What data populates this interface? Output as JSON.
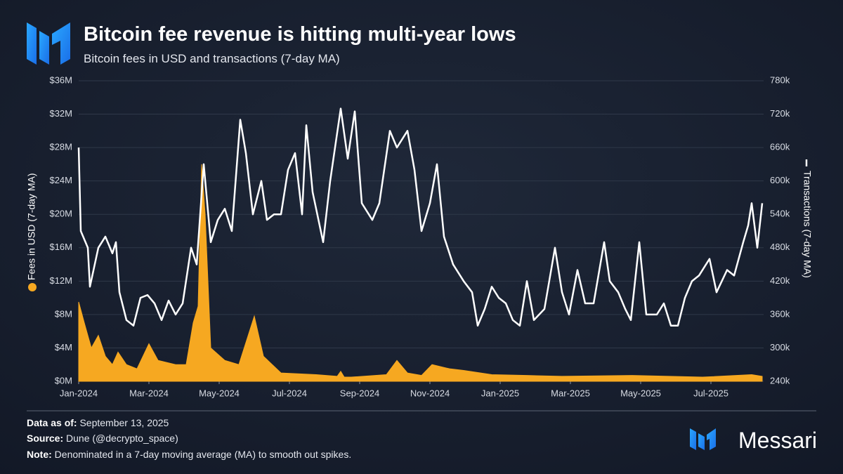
{
  "chart_data": {
    "type": "dual-axis-area-line",
    "title": "Bitcoin fee revenue is hitting multi-year lows",
    "subtitle": "Bitcoin fees in USD and transactions (7-day MA)",
    "xlim": [
      0,
      19.5
    ],
    "xticks": [
      {
        "value": 0,
        "label": "Jan-2024"
      },
      {
        "value": 2,
        "label": "Mar-2024"
      },
      {
        "value": 4,
        "label": "May-2024"
      },
      {
        "value": 6,
        "label": "Jul-2024"
      },
      {
        "value": 8,
        "label": "Sep-2024"
      },
      {
        "value": 10,
        "label": "Nov-2024"
      },
      {
        "value": 12,
        "label": "Jan-2025"
      },
      {
        "value": 14,
        "label": "Mar-2025"
      },
      {
        "value": 16,
        "label": "May-2025"
      },
      {
        "value": 18,
        "label": "Jul-2025"
      }
    ],
    "ylim": [
      0,
      36000000
    ],
    "yticks": [
      {
        "value": 0,
        "label": "$0M"
      },
      {
        "value": 4000000,
        "label": "$4M"
      },
      {
        "value": 8000000,
        "label": "$8M"
      },
      {
        "value": 12000000,
        "label": "$12M"
      },
      {
        "value": 16000000,
        "label": "$16M"
      },
      {
        "value": 20000000,
        "label": "$20M"
      },
      {
        "value": 24000000,
        "label": "$24M"
      },
      {
        "value": 28000000,
        "label": "$28M"
      },
      {
        "value": 32000000,
        "label": "$32M"
      },
      {
        "value": 36000000,
        "label": "$36M"
      }
    ],
    "y2lim": [
      240000,
      780000
    ],
    "y2ticks": [
      {
        "value": 240000,
        "label": "240k"
      },
      {
        "value": 300000,
        "label": "300k"
      },
      {
        "value": 360000,
        "label": "360k"
      },
      {
        "value": 420000,
        "label": "420k"
      },
      {
        "value": 480000,
        "label": "480k"
      },
      {
        "value": 540000,
        "label": "540k"
      },
      {
        "value": 600000,
        "label": "600k"
      },
      {
        "value": 660000,
        "label": "660k"
      },
      {
        "value": 720000,
        "label": "720k"
      },
      {
        "value": 780000,
        "label": "780k"
      }
    ],
    "grid": true,
    "series": [
      {
        "name": "Fees in USD (7-day MA)",
        "color": "#f6a821",
        "kind": "area",
        "axis": "y",
        "x": [
          0,
          0.16,
          0.36,
          0.56,
          0.76,
          0.96,
          1.12,
          1.36,
          1.66,
          2,
          2.26,
          2.76,
          3.06,
          3.26,
          3.4,
          3.5,
          3.6,
          3.76,
          4.16,
          4.56,
          5,
          5.26,
          5.76,
          6.76,
          7.36,
          7.46,
          7.56,
          7.76,
          8.76,
          9.06,
          9.36,
          9.76,
          10.06,
          10.56,
          10.96,
          11.76,
          12.76,
          13.76,
          15.76,
          17.76,
          19.16,
          19.46
        ],
        "values": [
          9500000,
          7000000,
          4000000,
          5500000,
          3000000,
          2000000,
          3500000,
          2000000,
          1500000,
          4500000,
          2500000,
          2000000,
          2000000,
          7000000,
          9000000,
          26000000,
          20000000,
          4000000,
          2500000,
          2000000,
          7800000,
          3000000,
          1000000,
          800000,
          600000,
          1200000,
          500000,
          500000,
          800000,
          2500000,
          1000000,
          700000,
          2000000,
          1500000,
          1300000,
          800000,
          700000,
          600000,
          700000,
          500000,
          800000,
          600000
        ]
      },
      {
        "name": "Transactions (7-day MA)",
        "color": "#ffffff",
        "kind": "line",
        "axis": "y2",
        "x": [
          0,
          0.06,
          0.26,
          0.32,
          0.56,
          0.76,
          0.96,
          1.06,
          1.16,
          1.36,
          1.56,
          1.76,
          1.96,
          2.16,
          2.36,
          2.56,
          2.76,
          2.96,
          3.2,
          3.36,
          3.56,
          3.76,
          3.96,
          4.16,
          4.36,
          4.6,
          4.76,
          4.96,
          5.2,
          5.36,
          5.56,
          5.76,
          5.96,
          6.16,
          6.36,
          6.48,
          6.66,
          6.96,
          7.16,
          7.46,
          7.66,
          7.86,
          8.06,
          8.36,
          8.56,
          8.86,
          9.06,
          9.36,
          9.56,
          9.76,
          10,
          10.2,
          10.4,
          10.66,
          10.96,
          11.2,
          11.36,
          11.56,
          11.76,
          11.96,
          12.16,
          12.36,
          12.56,
          12.76,
          12.96,
          13.26,
          13.56,
          13.76,
          13.96,
          14.2,
          14.42,
          14.66,
          14.96,
          15.12,
          15.36,
          15.56,
          15.72,
          15.96,
          16.16,
          16.46,
          16.66,
          16.86,
          17.06,
          17.26,
          17.46,
          17.66,
          17.96,
          18.16,
          18.46,
          18.66,
          18.92,
          19.06,
          19.16,
          19.32,
          19.46
        ],
        "values": [
          660000,
          510000,
          480000,
          410000,
          480000,
          500000,
          470000,
          490000,
          400000,
          350000,
          340000,
          390000,
          395000,
          380000,
          350000,
          385000,
          360000,
          380000,
          480000,
          450000,
          630000,
          490000,
          530000,
          550000,
          510000,
          710000,
          650000,
          540000,
          600000,
          530000,
          540000,
          540000,
          620000,
          650000,
          540000,
          700000,
          580000,
          490000,
          600000,
          730000,
          640000,
          725000,
          560000,
          530000,
          560000,
          690000,
          660000,
          690000,
          620000,
          510000,
          560000,
          630000,
          500000,
          450000,
          420000,
          400000,
          340000,
          370000,
          410000,
          390000,
          380000,
          350000,
          340000,
          420000,
          350000,
          370000,
          480000,
          400000,
          360000,
          440000,
          380000,
          380000,
          490000,
          420000,
          400000,
          370000,
          350000,
          490000,
          360000,
          360000,
          380000,
          340000,
          340000,
          390000,
          420000,
          430000,
          460000,
          400000,
          440000,
          430000,
          490000,
          520000,
          560000,
          480000,
          560000
        ]
      }
    ],
    "footer": {
      "notes": [
        {
          "label": "Data as of:",
          "text": "September 13, 2025"
        },
        {
          "label": "Source:",
          "text": "Dune (@decrypto_space)"
        },
        {
          "label": "Note:",
          "text": "Denominated in a 7-day moving average (MA) to smooth out spikes."
        }
      ],
      "brand": "Messari"
    }
  }
}
